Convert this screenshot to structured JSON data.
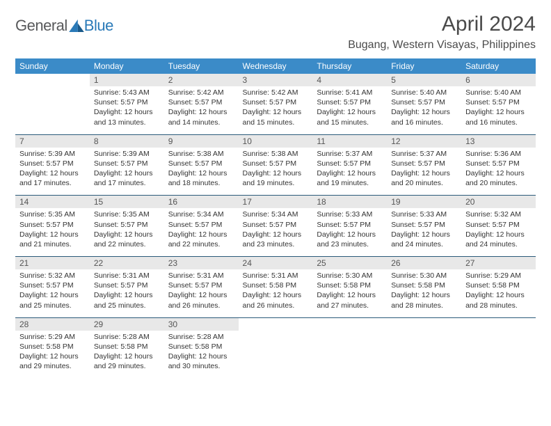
{
  "logo": {
    "text1": "General",
    "text2": "Blue"
  },
  "title": "April 2024",
  "location": "Bugang, Western Visayas, Philippines",
  "colors": {
    "header_bg": "#3b8bc8",
    "header_text": "#ffffff",
    "daynum_bg": "#e8e8e8",
    "row_divider": "#2a5a7a",
    "text": "#333333",
    "logo_gray": "#58595b",
    "logo_blue": "#2a7ab8"
  },
  "fonts": {
    "title_size": 30,
    "location_size": 16,
    "dayheader_size": 12,
    "body_size": 10.5
  },
  "days": [
    "Sunday",
    "Monday",
    "Tuesday",
    "Wednesday",
    "Thursday",
    "Friday",
    "Saturday"
  ],
  "weeks": [
    [
      null,
      {
        "n": "1",
        "sr": "5:43 AM",
        "ss": "5:57 PM",
        "dl": "12 hours and 13 minutes."
      },
      {
        "n": "2",
        "sr": "5:42 AM",
        "ss": "5:57 PM",
        "dl": "12 hours and 14 minutes."
      },
      {
        "n": "3",
        "sr": "5:42 AM",
        "ss": "5:57 PM",
        "dl": "12 hours and 15 minutes."
      },
      {
        "n": "4",
        "sr": "5:41 AM",
        "ss": "5:57 PM",
        "dl": "12 hours and 15 minutes."
      },
      {
        "n": "5",
        "sr": "5:40 AM",
        "ss": "5:57 PM",
        "dl": "12 hours and 16 minutes."
      },
      {
        "n": "6",
        "sr": "5:40 AM",
        "ss": "5:57 PM",
        "dl": "12 hours and 16 minutes."
      }
    ],
    [
      {
        "n": "7",
        "sr": "5:39 AM",
        "ss": "5:57 PM",
        "dl": "12 hours and 17 minutes."
      },
      {
        "n": "8",
        "sr": "5:39 AM",
        "ss": "5:57 PM",
        "dl": "12 hours and 17 minutes."
      },
      {
        "n": "9",
        "sr": "5:38 AM",
        "ss": "5:57 PM",
        "dl": "12 hours and 18 minutes."
      },
      {
        "n": "10",
        "sr": "5:38 AM",
        "ss": "5:57 PM",
        "dl": "12 hours and 19 minutes."
      },
      {
        "n": "11",
        "sr": "5:37 AM",
        "ss": "5:57 PM",
        "dl": "12 hours and 19 minutes."
      },
      {
        "n": "12",
        "sr": "5:37 AM",
        "ss": "5:57 PM",
        "dl": "12 hours and 20 minutes."
      },
      {
        "n": "13",
        "sr": "5:36 AM",
        "ss": "5:57 PM",
        "dl": "12 hours and 20 minutes."
      }
    ],
    [
      {
        "n": "14",
        "sr": "5:35 AM",
        "ss": "5:57 PM",
        "dl": "12 hours and 21 minutes."
      },
      {
        "n": "15",
        "sr": "5:35 AM",
        "ss": "5:57 PM",
        "dl": "12 hours and 22 minutes."
      },
      {
        "n": "16",
        "sr": "5:34 AM",
        "ss": "5:57 PM",
        "dl": "12 hours and 22 minutes."
      },
      {
        "n": "17",
        "sr": "5:34 AM",
        "ss": "5:57 PM",
        "dl": "12 hours and 23 minutes."
      },
      {
        "n": "18",
        "sr": "5:33 AM",
        "ss": "5:57 PM",
        "dl": "12 hours and 23 minutes."
      },
      {
        "n": "19",
        "sr": "5:33 AM",
        "ss": "5:57 PM",
        "dl": "12 hours and 24 minutes."
      },
      {
        "n": "20",
        "sr": "5:32 AM",
        "ss": "5:57 PM",
        "dl": "12 hours and 24 minutes."
      }
    ],
    [
      {
        "n": "21",
        "sr": "5:32 AM",
        "ss": "5:57 PM",
        "dl": "12 hours and 25 minutes."
      },
      {
        "n": "22",
        "sr": "5:31 AM",
        "ss": "5:57 PM",
        "dl": "12 hours and 25 minutes."
      },
      {
        "n": "23",
        "sr": "5:31 AM",
        "ss": "5:57 PM",
        "dl": "12 hours and 26 minutes."
      },
      {
        "n": "24",
        "sr": "5:31 AM",
        "ss": "5:58 PM",
        "dl": "12 hours and 26 minutes."
      },
      {
        "n": "25",
        "sr": "5:30 AM",
        "ss": "5:58 PM",
        "dl": "12 hours and 27 minutes."
      },
      {
        "n": "26",
        "sr": "5:30 AM",
        "ss": "5:58 PM",
        "dl": "12 hours and 28 minutes."
      },
      {
        "n": "27",
        "sr": "5:29 AM",
        "ss": "5:58 PM",
        "dl": "12 hours and 28 minutes."
      }
    ],
    [
      {
        "n": "28",
        "sr": "5:29 AM",
        "ss": "5:58 PM",
        "dl": "12 hours and 29 minutes."
      },
      {
        "n": "29",
        "sr": "5:28 AM",
        "ss": "5:58 PM",
        "dl": "12 hours and 29 minutes."
      },
      {
        "n": "30",
        "sr": "5:28 AM",
        "ss": "5:58 PM",
        "dl": "12 hours and 30 minutes."
      },
      null,
      null,
      null,
      null
    ]
  ],
  "labels": {
    "sunrise": "Sunrise:",
    "sunset": "Sunset:",
    "daylight": "Daylight:"
  }
}
